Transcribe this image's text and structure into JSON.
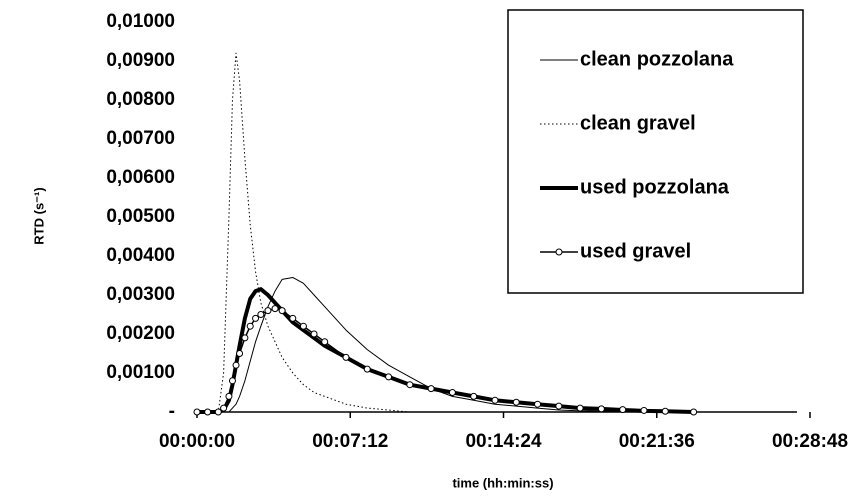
{
  "chart_data": {
    "type": "line",
    "x_label": "time (hh:min:ss)",
    "y_label": "RTD (s⁻¹)",
    "x": [
      0,
      30,
      60,
      75,
      90,
      100,
      110,
      120,
      135,
      150,
      165,
      180,
      200,
      220,
      240,
      270,
      300,
      330,
      360,
      420,
      480,
      540,
      600,
      660,
      720,
      780,
      840,
      900,
      960,
      1020,
      1080,
      1140,
      1200,
      1260,
      1320,
      1400
    ],
    "xlim": [
      0,
      1728
    ],
    "xticks": [
      {
        "value": 0,
        "label": "00:00:00"
      },
      {
        "value": 432,
        "label": "00:07:12"
      },
      {
        "value": 864,
        "label": "00:14:24"
      },
      {
        "value": 1296,
        "label": "00:21:36"
      },
      {
        "value": 1728,
        "label": "00:28:48"
      }
    ],
    "ylim": [
      0,
      0.01
    ],
    "yticks": [
      {
        "value": 0,
        "label": "-"
      },
      {
        "value": 0.001,
        "label": "0,00100"
      },
      {
        "value": 0.002,
        "label": "0,00200"
      },
      {
        "value": 0.003,
        "label": "0,00300"
      },
      {
        "value": 0.004,
        "label": "0,00400"
      },
      {
        "value": 0.005,
        "label": "0,00500"
      },
      {
        "value": 0.006,
        "label": "0,00600"
      },
      {
        "value": 0.007,
        "label": "0,00700"
      },
      {
        "value": 0.008,
        "label": "0,00800"
      },
      {
        "value": 0.009,
        "label": "0,00900"
      },
      {
        "value": 0.01,
        "label": "0,01000"
      }
    ],
    "series": [
      {
        "name": "clean pozzolana",
        "color": "#000000",
        "line_width": 1,
        "line_style": "solid",
        "marker": "none",
        "values": [
          0,
          0,
          0,
          0,
          0,
          0.0001,
          0.0002,
          0.0004,
          0.0008,
          0.0013,
          0.0018,
          0.0022,
          0.0027,
          0.0031,
          0.0034,
          0.00345,
          0.0033,
          0.003,
          0.0027,
          0.0021,
          0.0016,
          0.0012,
          0.0009,
          0.0006,
          0.0004,
          0.0003,
          0.0002,
          0.00015,
          0.0001,
          5e-05,
          3e-05,
          2e-05,
          1e-05,
          0,
          0,
          0
        ]
      },
      {
        "name": "clean gravel",
        "color": "#000000",
        "line_width": 1,
        "line_style": "dotted",
        "marker": "none",
        "values": [
          0,
          0,
          0,
          0.001,
          0.005,
          0.008,
          0.0092,
          0.0085,
          0.0065,
          0.0048,
          0.0036,
          0.0028,
          0.0022,
          0.0018,
          0.0014,
          0.001,
          0.0007,
          0.0005,
          0.0004,
          0.0002,
          0.0001,
          5e-05,
          0,
          0,
          0,
          0,
          0,
          0,
          0,
          0,
          0,
          0,
          0,
          0,
          0,
          0
        ]
      },
      {
        "name": "used pozzolana",
        "color": "#000000",
        "line_width": 4,
        "line_style": "solid",
        "marker": "none",
        "values": [
          0,
          0,
          0,
          5e-05,
          0.0003,
          0.0007,
          0.0012,
          0.0017,
          0.0024,
          0.0029,
          0.0031,
          0.00315,
          0.003,
          0.0028,
          0.0026,
          0.0023,
          0.0021,
          0.0019,
          0.0017,
          0.0014,
          0.0011,
          0.0009,
          0.0007,
          0.0006,
          0.0005,
          0.0004,
          0.0003,
          0.00025,
          0.0002,
          0.00015,
          0.0001,
          8e-05,
          5e-05,
          3e-05,
          2e-05,
          0
        ]
      },
      {
        "name": "used gravel",
        "color": "#000000",
        "line_width": 1.5,
        "line_style": "solid",
        "marker": "circle",
        "values": [
          0,
          0,
          0,
          0.0001,
          0.0004,
          0.0008,
          0.0012,
          0.0015,
          0.0019,
          0.0022,
          0.0024,
          0.0025,
          0.0026,
          0.00265,
          0.0026,
          0.0024,
          0.0022,
          0.002,
          0.0018,
          0.0014,
          0.0011,
          0.0009,
          0.0007,
          0.0006,
          0.0005,
          0.0004,
          0.0003,
          0.00025,
          0.0002,
          0.00015,
          0.0001,
          8e-05,
          6e-05,
          4e-05,
          2e-05,
          0
        ]
      }
    ]
  }
}
